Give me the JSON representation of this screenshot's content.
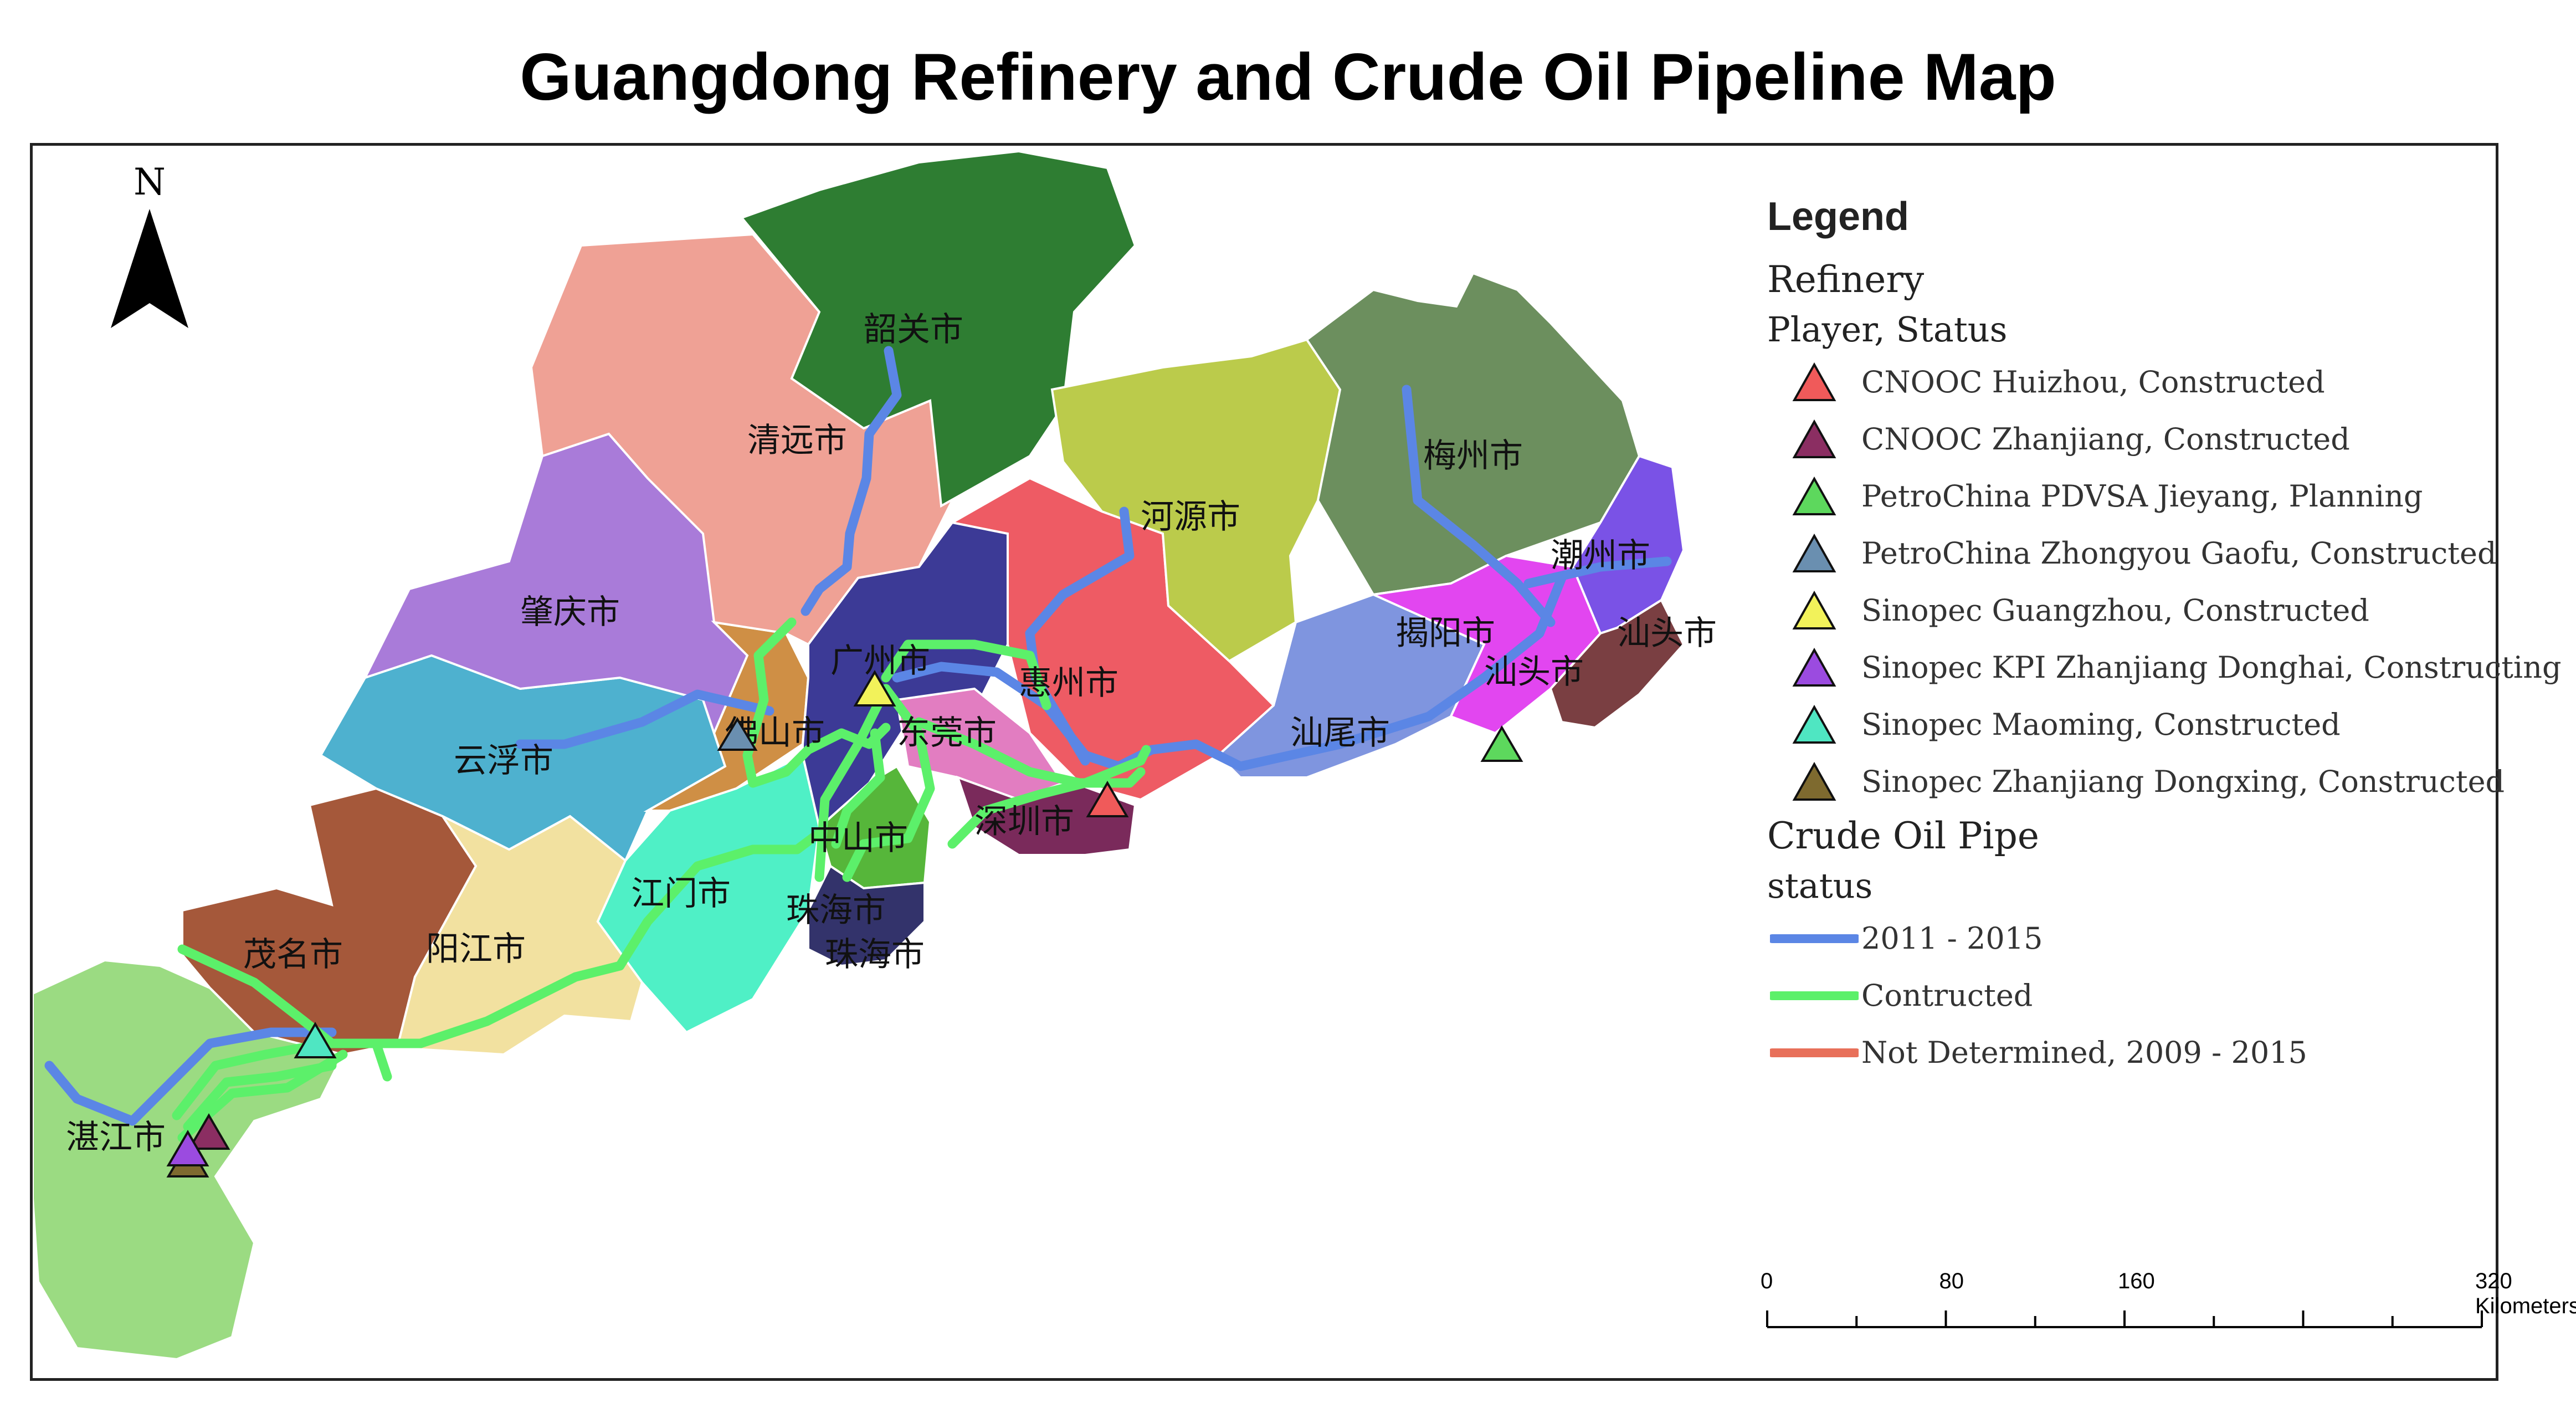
{
  "title": "Guangdong Refinery and Crude Oil Pipeline Map",
  "north_arrow": {
    "label": "N",
    "icon": "north-arrow-icon"
  },
  "cities": [
    {
      "id": "shaoguan",
      "name": "韶关市",
      "color": "#2E7D32"
    },
    {
      "id": "qingyuan",
      "name": "清远市",
      "color": "#EFA195"
    },
    {
      "id": "zhaoqing",
      "name": "肇庆市",
      "color": "#A97BD9"
    },
    {
      "id": "yunfu",
      "name": "云浮市",
      "color": "#4EB1CF"
    },
    {
      "id": "foshan",
      "name": "佛山市",
      "color": "#CF8F45"
    },
    {
      "id": "guangzhou",
      "name": "广州市",
      "color": "#3C3A96"
    },
    {
      "id": "dongguan",
      "name": "东莞市",
      "color": "#E27DC1"
    },
    {
      "id": "huizhou",
      "name": "惠州市",
      "color": "#EE5B64"
    },
    {
      "id": "heyuan",
      "name": "河源市",
      "color": "#BBCB4B"
    },
    {
      "id": "meizhou",
      "name": "梅州市",
      "color": "#6C8F5E"
    },
    {
      "id": "chaozhou",
      "name": "潮州市",
      "color": "#7A52E6"
    },
    {
      "id": "jieyang",
      "name": "揭阳市",
      "color": "#E246F0"
    },
    {
      "id": "shantou",
      "name": "汕头市",
      "color": "#7A3F42"
    },
    {
      "id": "shantou2",
      "name": "汕头市",
      "color": "#7A3F42"
    },
    {
      "id": "shanwei",
      "name": "汕尾市",
      "color": "#7F95DF"
    },
    {
      "id": "shenzhen",
      "name": "深圳市",
      "color": "#7A2A5B"
    },
    {
      "id": "zhongshan",
      "name": "中山市",
      "color": "#56B63A"
    },
    {
      "id": "zhuhai",
      "name": "珠海市",
      "color": "#33336B"
    },
    {
      "id": "zhuhai2",
      "name": "珠海市",
      "color": "#33336B"
    },
    {
      "id": "jiangmen",
      "name": "江门市",
      "color": "#4FF0C6"
    },
    {
      "id": "yangjiang",
      "name": "阳江市",
      "color": "#F2E1A0"
    },
    {
      "id": "maoming",
      "name": "茂名市",
      "color": "#A5583A"
    },
    {
      "id": "zhanjiang",
      "name": "湛江市",
      "color": "#9BDB82"
    }
  ],
  "refineries": [
    {
      "id": "cnooc-huizhou",
      "label": "CNOOC Huizhou, Constructed",
      "color": "#F05A5A"
    },
    {
      "id": "cnooc-zhanjiang",
      "label": "CNOOC Zhanjiang, Constructed",
      "color": "#8B2E62"
    },
    {
      "id": "petrochina-jieyang",
      "label": "PetroChina PDVSA Jieyang, Planning",
      "color": "#5DD85D"
    },
    {
      "id": "petrochina-gaofu",
      "label": "PetroChina Zhongyou Gaofu, Constructed",
      "color": "#6A8FB0"
    },
    {
      "id": "sinopec-guangzhou",
      "label": "Sinopec Guangzhou, Constructed",
      "color": "#F2F25A"
    },
    {
      "id": "sinopec-kpi",
      "label": "Sinopec KPI Zhanjiang Donghai, Constructing",
      "color": "#9B4BE0"
    },
    {
      "id": "sinopec-maoming",
      "label": "Sinopec Maoming, Constructed",
      "color": "#4FE6C2"
    },
    {
      "id": "sinopec-dongxing",
      "label": "Sinopec Zhanjiang Dongxing, Constructed",
      "color": "#7E6A2F"
    }
  ],
  "pipelines": [
    {
      "id": "p2011",
      "label": "2011 - 2015",
      "color": "#5B86E5"
    },
    {
      "id": "pcon",
      "label": "Contructed",
      "color": "#5CF06A"
    },
    {
      "id": "pnd",
      "label": "Not Determined, 2009 - 2015",
      "color": "#E8705A"
    }
  ],
  "legend": {
    "title": "Legend",
    "refinery_heading": "Refinery",
    "refinery_subheading": "Player, Status",
    "pipe_heading": "Crude Oil Pipe",
    "pipe_subheading": "status"
  },
  "scale_bar": {
    "labels": [
      "0",
      "80",
      "160",
      "320 Kilometers"
    ],
    "values_km": [
      0,
      80,
      160,
      320
    ]
  }
}
